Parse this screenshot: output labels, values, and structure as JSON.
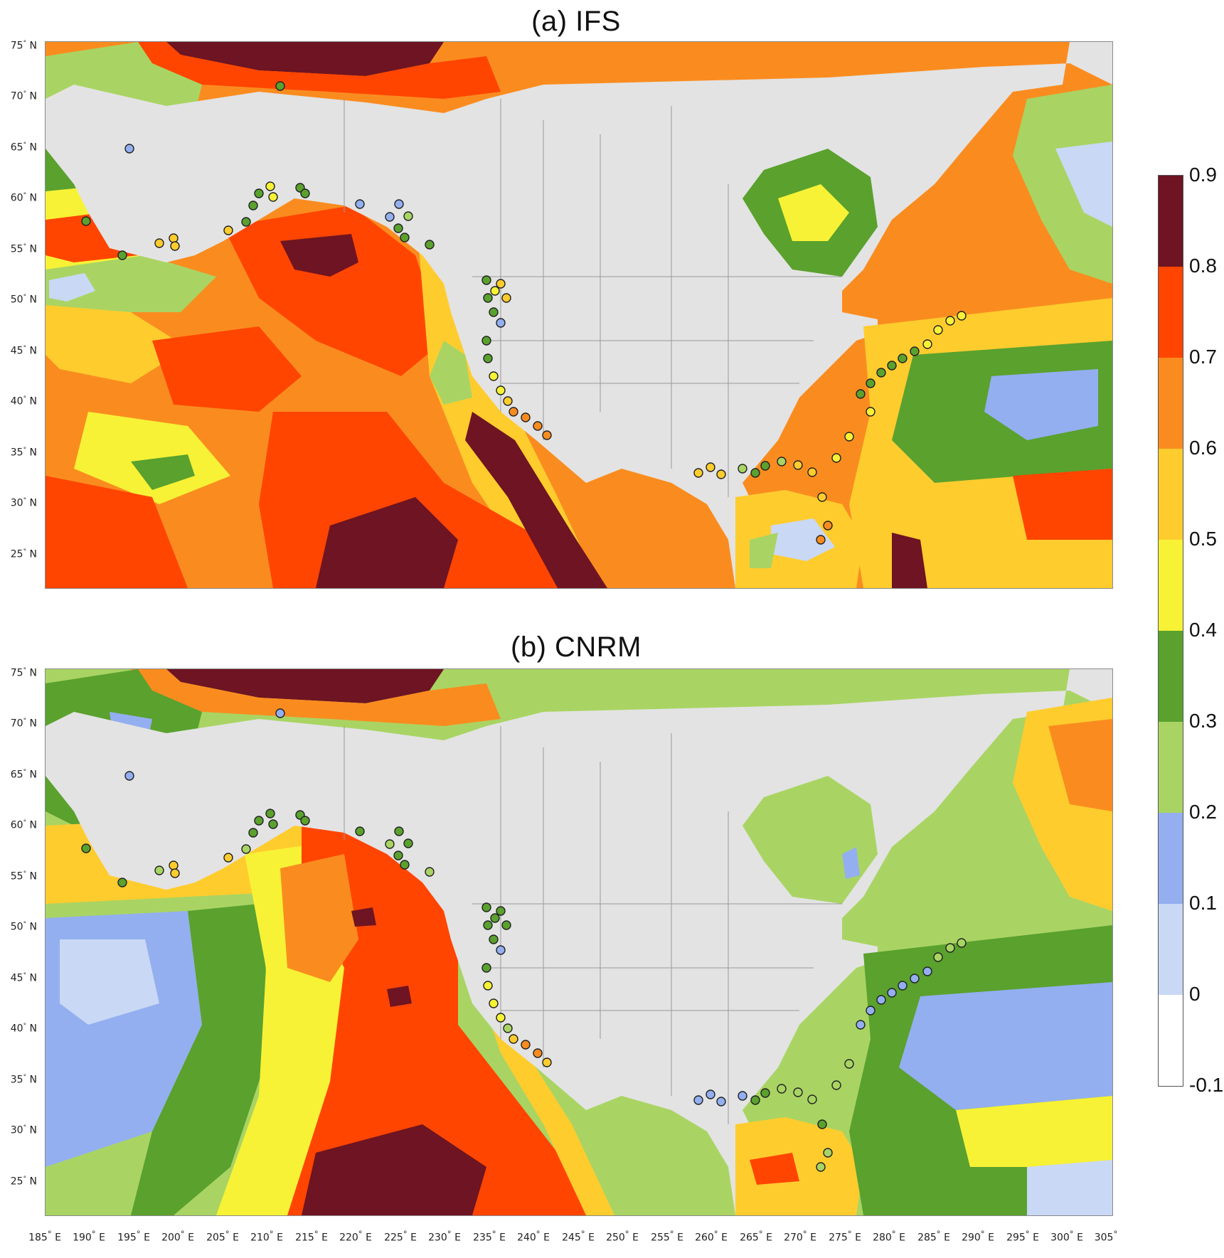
{
  "panels": [
    {
      "title": "(a) IFS"
    },
    {
      "title": "(b) CNRM"
    }
  ],
  "lat_labels": [
    "75",
    "70",
    "65",
    "60",
    "55",
    "50",
    "45",
    "40",
    "35",
    "30",
    "25"
  ],
  "lat_suffix": "N",
  "lon_labels": [
    "185",
    "190",
    "195",
    "200",
    "205",
    "210",
    "215",
    "220",
    "225",
    "230",
    "235",
    "240",
    "245",
    "250",
    "255",
    "260",
    "265",
    "270",
    "275",
    "280",
    "285",
    "290",
    "295",
    "300",
    "305"
  ],
  "lon_suffix": "E",
  "colorbar": {
    "levels": [
      "0.9",
      "0.8",
      "0.7",
      "0.6",
      "0.5",
      "0.4",
      "0.3",
      "0.2",
      "0.1",
      "0",
      "-0.1"
    ],
    "colors": [
      "#6e1422",
      "#ff4500",
      "#fa8c1f",
      "#ffcc2e",
      "#f7f236",
      "#5aa12e",
      "#a9d463",
      "#93aff0",
      "#c9d8f5",
      "#ffffff"
    ]
  },
  "colors": {
    "land": "#e3e3e3",
    "border": "#9a9a9a",
    "marker_outline": "#222222"
  }
}
